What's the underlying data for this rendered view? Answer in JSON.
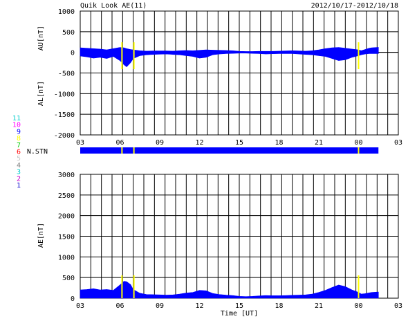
{
  "header": {
    "title": "Quik Look AE(11)",
    "date_range": "2012/10/17-2012/10/18"
  },
  "colors": {
    "data_fill": "#0000ff",
    "gap_marker": "#ffff00",
    "station_gap": "#ffffff",
    "axis": "#000000",
    "background": "#ffffff"
  },
  "chart_data": [
    {
      "type": "area",
      "name": "AU/AL panel",
      "ylabel_upper": "AU[nT]",
      "ylabel_lower": "AL[nT]",
      "ylim": [
        -2000,
        1000
      ],
      "yticks": [
        "1000",
        "500",
        "0",
        "-500",
        "-1000",
        "-1500",
        "-2000"
      ],
      "xlim_hours": [
        0,
        24
      ],
      "xticks": [
        "03",
        "06",
        "09",
        "12",
        "15",
        "18",
        "21",
        "00",
        "03"
      ],
      "grid": true,
      "x_hours": [
        0,
        0.5,
        1,
        1.5,
        2,
        2.5,
        3,
        3.3,
        3.5,
        3.8,
        4,
        4.5,
        5,
        5.5,
        6,
        6.5,
        7,
        7.5,
        8,
        8.5,
        9,
        9.5,
        10,
        10.5,
        11,
        11.5,
        12,
        12.5,
        13,
        13.5,
        14,
        14.5,
        15,
        15.5,
        16,
        16.5,
        17,
        17.5,
        18,
        18.5,
        19,
        19.5,
        20,
        20.5,
        21,
        21.2,
        21.5,
        21.8,
        22,
        22.5
      ],
      "au": [
        110,
        100,
        90,
        80,
        60,
        90,
        120,
        110,
        90,
        70,
        60,
        40,
        30,
        35,
        35,
        35,
        30,
        40,
        45,
        40,
        50,
        60,
        55,
        50,
        45,
        40,
        25,
        20,
        20,
        25,
        25,
        25,
        30,
        35,
        40,
        35,
        30,
        40,
        60,
        90,
        110,
        120,
        100,
        80,
        60,
        40,
        70,
        100,
        110,
        120
      ],
      "al": [
        -90,
        -110,
        -140,
        -120,
        -150,
        -100,
        -200,
        -300,
        -350,
        -250,
        -150,
        -80,
        -60,
        -50,
        -45,
        -40,
        -50,
        -60,
        -80,
        -100,
        -140,
        -120,
        -60,
        -40,
        -30,
        -25,
        -20,
        -20,
        -25,
        -30,
        -40,
        -35,
        -30,
        -30,
        -30,
        -40,
        -50,
        -60,
        -80,
        -100,
        -150,
        -200,
        -180,
        -120,
        -80,
        -60,
        -40,
        -30,
        -30,
        -30
      ]
    },
    {
      "type": "area",
      "name": "AE panel",
      "ylabel": "AE[nT]",
      "xlabel": "Time [UT]",
      "ylim": [
        0,
        3000
      ],
      "yticks": [
        "3000",
        "2500",
        "2000",
        "1500",
        "1000",
        "500",
        "0"
      ],
      "xlim_hours": [
        0,
        24
      ],
      "xticks": [
        "03",
        "06",
        "09",
        "12",
        "15",
        "18",
        "21",
        "00",
        "03"
      ],
      "grid": true,
      "x_hours": [
        0,
        0.5,
        1,
        1.5,
        2,
        2.5,
        3,
        3.3,
        3.5,
        3.8,
        4,
        4.5,
        5,
        5.5,
        6,
        6.5,
        7,
        7.5,
        8,
        8.5,
        9,
        9.5,
        10,
        10.5,
        11,
        11.5,
        12,
        12.5,
        13,
        13.5,
        14,
        14.5,
        15,
        15.5,
        16,
        16.5,
        17,
        17.5,
        18,
        18.5,
        19,
        19.5,
        20,
        20.5,
        21,
        21.2,
        21.5,
        21.8,
        22,
        22.5
      ],
      "ae": [
        200,
        210,
        230,
        200,
        210,
        190,
        320,
        410,
        400,
        330,
        210,
        120,
        90,
        85,
        80,
        75,
        80,
        100,
        125,
        140,
        190,
        180,
        115,
        90,
        75,
        65,
        45,
        40,
        45,
        55,
        65,
        60,
        60,
        65,
        70,
        75,
        80,
        100,
        140,
        190,
        260,
        320,
        280,
        200,
        140,
        100,
        110,
        130,
        140,
        150
      ]
    }
  ],
  "station_bar": {
    "label": "N.STN",
    "gaps_hours": [
      3.15,
      4.05,
      21.0
    ]
  },
  "station_legend": [
    "11",
    "10",
    "9",
    "8",
    "7",
    "6",
    "5",
    "4",
    "3",
    "2",
    "1"
  ],
  "station_legend_colors": [
    "#00cccc",
    "#ff00ff",
    "#0000ff",
    "#ffff00",
    "#00cc00",
    "#ff0000",
    "#c8c8c8",
    "#808080",
    "#00cccc",
    "#cc00cc",
    "#0000cc"
  ]
}
